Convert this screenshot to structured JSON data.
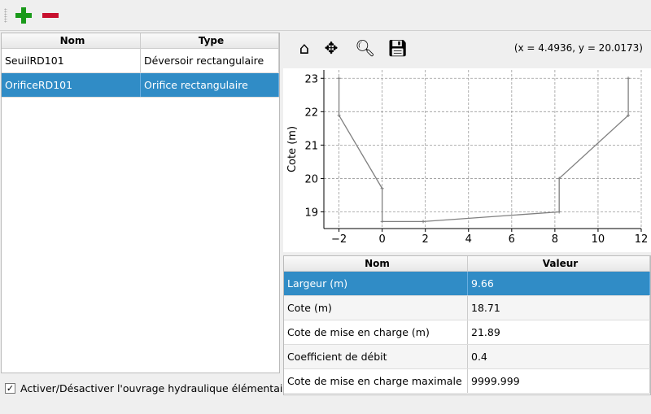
{
  "toolbar": {
    "add_icon": "plus-icon",
    "remove_icon": "minus-icon"
  },
  "structures": {
    "headers": [
      "Nom",
      "Type"
    ],
    "rows": [
      [
        "SeuilRD101",
        "Déversoir rectangulaire"
      ],
      [
        "OrificeRD101",
        "Orifice rectangulaire"
      ]
    ],
    "selected_index": 1
  },
  "toggle": {
    "label": "Activer/Désactiver l'ouvrage hydraulique élémentaire",
    "checked": true,
    "mark": "✓"
  },
  "plot_toolbar": {
    "icons": [
      "home-icon",
      "pan-icon",
      "zoom-icon",
      "save-icon"
    ],
    "coords": "(x = 4.4936,   y = 20.0173)"
  },
  "params": {
    "headers": [
      "Nom",
      "Valeur"
    ],
    "rows": [
      [
        "Largeur (m)",
        "9.66"
      ],
      [
        "Cote (m)",
        "18.71"
      ],
      [
        "Cote de mise en charge (m)",
        "21.89"
      ],
      [
        "Coefficient de débit",
        "0.4"
      ],
      [
        "Cote de mise en charge maximale",
        "9999.999"
      ]
    ],
    "selected_index": 0
  },
  "chart_data": {
    "type": "line",
    "ylabel": "Cote (m)",
    "xlabel": "",
    "xlim": [
      -2.7,
      12
    ],
    "ylim": [
      18.5,
      23.25
    ],
    "grid": true,
    "xticks": [
      -2,
      0,
      2,
      4,
      6,
      8,
      10,
      12
    ],
    "yticks": [
      19,
      20,
      21,
      22,
      23
    ],
    "line_color": "#808080",
    "x": [
      -2,
      -2,
      0,
      0,
      1.9,
      8.2,
      8.2,
      11.4,
      11.4
    ],
    "y": [
      23,
      21.89,
      19.7,
      18.71,
      18.71,
      19,
      20,
      21.89,
      23
    ]
  }
}
